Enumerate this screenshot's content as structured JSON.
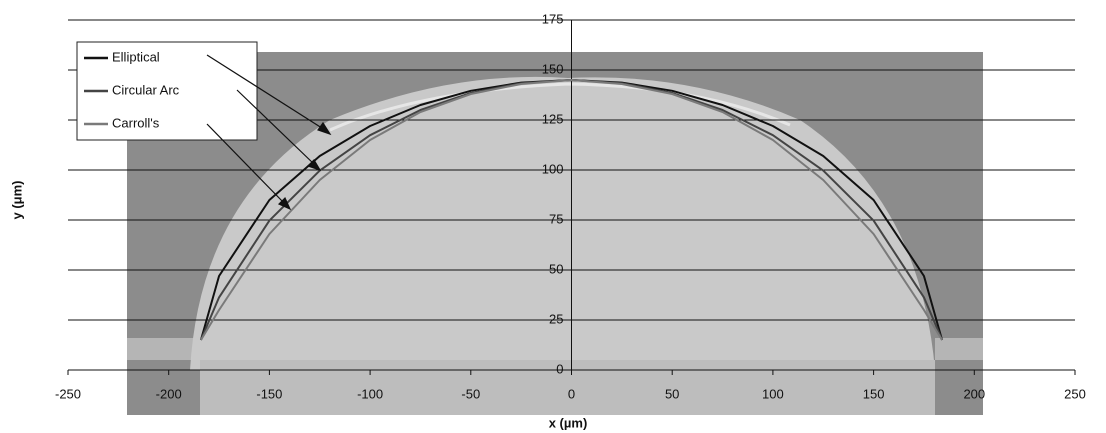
{
  "chart_data": {
    "type": "line",
    "x_label": "x (µm)",
    "y_label": "y (μm)",
    "x": [
      -184,
      -175,
      -150,
      -125,
      -100,
      -75,
      -50,
      -25,
      0,
      25,
      50,
      75,
      100,
      125,
      150,
      175,
      184
    ],
    "series": [
      {
        "name": "Elliptical",
        "color": "#111111",
        "values": [
          15,
          47,
          85,
          107,
          122,
          132.5,
          139.6,
          143.7,
          145,
          143.7,
          139.6,
          132.5,
          122,
          107,
          85,
          47,
          15
        ]
      },
      {
        "name": "Circular Arc",
        "color": "#444444",
        "values": [
          15,
          36.3,
          74.7,
          99.7,
          117.4,
          130,
          138.5,
          143.4,
          145,
          143.4,
          138.5,
          130,
          117.4,
          99.7,
          74.7,
          36.3,
          15
        ]
      },
      {
        "name": "Carroll's",
        "color": "#7a7a7a",
        "values": [
          15,
          30,
          68,
          95,
          115,
          129,
          138,
          143,
          145,
          143,
          138,
          129,
          115,
          95,
          68,
          30,
          15
        ]
      }
    ],
    "xlim": [
      -250,
      250
    ],
    "xticks": [
      -250,
      -200,
      -150,
      -100,
      -50,
      0,
      50,
      100,
      150,
      200,
      250
    ],
    "ylim": [
      0,
      175
    ],
    "yticks": [
      0,
      25,
      50,
      75,
      100,
      125,
      150,
      175
    ],
    "grid": true
  }
}
